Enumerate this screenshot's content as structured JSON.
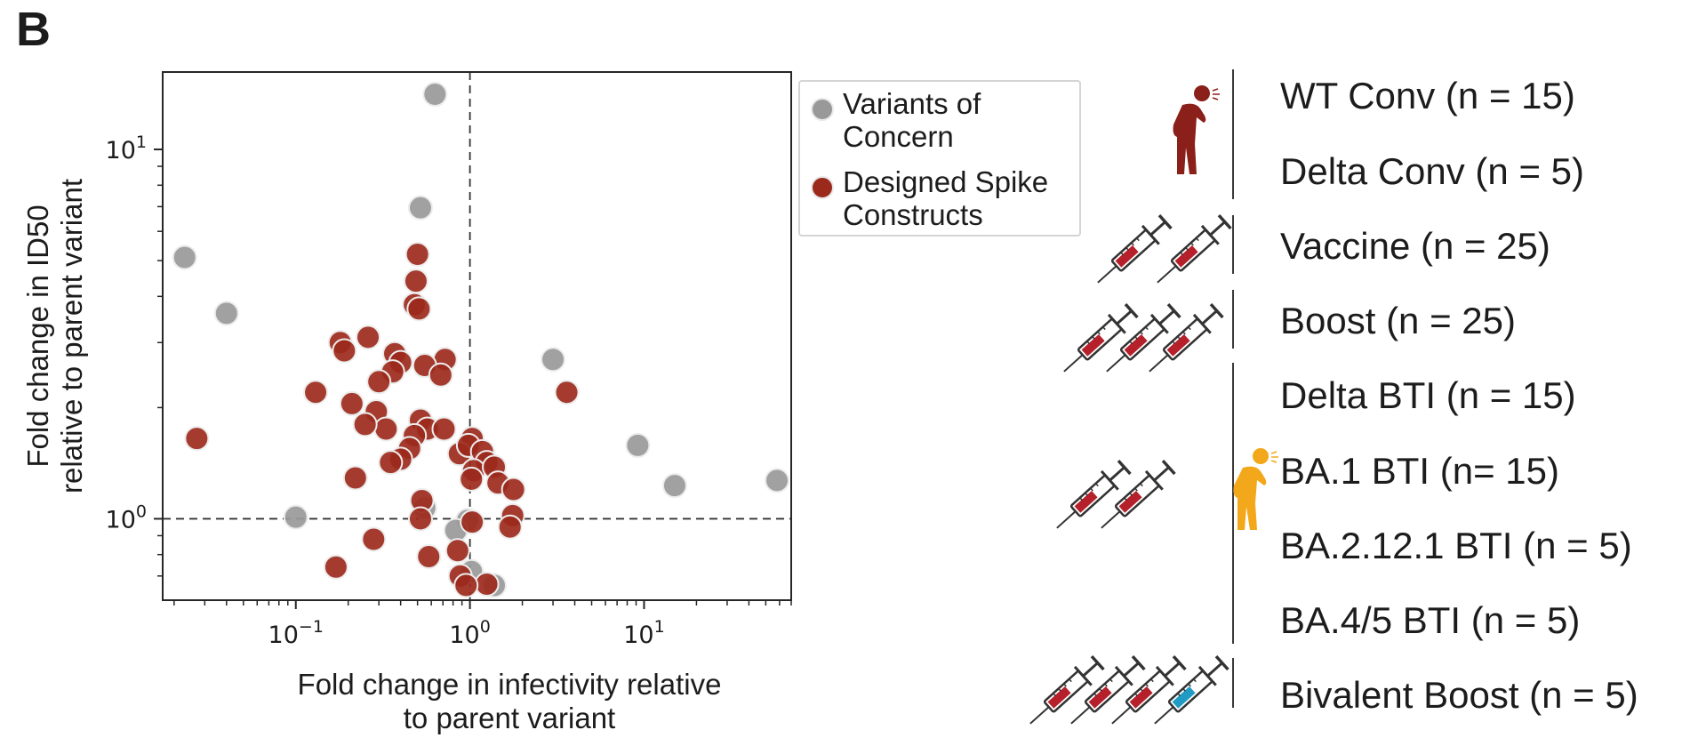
{
  "panel_label": "B",
  "colors": {
    "voc": "#999999",
    "designed": "#9c2a1c",
    "person_wt": "#8b1f1a",
    "person_bti": "#f2a81a",
    "syringe_fill_red": "#b5202a",
    "syringe_fill_blue": "#1f9bc4"
  },
  "chart_data": {
    "type": "scatter",
    "xscale": "log",
    "yscale": "log",
    "xlabel": "Fold change in infectivity relative to parent variant",
    "xlabel_lines": [
      "Fold change in infectivity relative",
      "to parent variant"
    ],
    "ylabel": "Fold change in ID50 relative to parent variant",
    "ylabel_lines": [
      "Fold change in ID50",
      "relative to parent variant"
    ],
    "xlim": [
      0.0172,
      70
    ],
    "ylim": [
      0.602,
      16.2
    ],
    "x_ticks": [
      {
        "value": 0.1,
        "base": "10",
        "exp": "−1"
      },
      {
        "value": 1,
        "base": "10",
        "exp": "0"
      },
      {
        "value": 10,
        "base": "10",
        "exp": "1"
      }
    ],
    "y_ticks": [
      {
        "value": 1,
        "base": "10",
        "exp": "0"
      },
      {
        "value": 10,
        "base": "10",
        "exp": "1"
      }
    ],
    "reference_lines": {
      "x": 1,
      "y": 1
    },
    "legend": [
      {
        "series": "voc",
        "label_lines": [
          "Variants of",
          "Concern"
        ]
      },
      {
        "series": "designed",
        "label_lines": [
          "Designed Spike",
          "Constructs"
        ]
      }
    ],
    "series": [
      {
        "name": "Variants of Concern",
        "key": "voc",
        "points": [
          [
            0.63,
            14.1
          ],
          [
            0.52,
            6.95
          ],
          [
            0.023,
            5.1
          ],
          [
            0.04,
            3.6
          ],
          [
            3.0,
            2.7
          ],
          [
            9.2,
            1.58
          ],
          [
            15.0,
            1.23
          ],
          [
            58,
            1.27
          ],
          [
            0.1,
            1.01
          ],
          [
            0.55,
            1.07
          ],
          [
            0.97,
            0.99
          ],
          [
            0.83,
            0.93
          ],
          [
            1.02,
            0.72
          ],
          [
            1.38,
            0.66
          ]
        ]
      },
      {
        "name": "Designed Spike Constructs",
        "key": "designed",
        "points": [
          [
            0.5,
            5.2
          ],
          [
            0.49,
            4.4
          ],
          [
            0.48,
            3.8
          ],
          [
            0.51,
            3.7
          ],
          [
            0.18,
            3.0
          ],
          [
            0.26,
            3.1
          ],
          [
            0.19,
            2.85
          ],
          [
            0.37,
            2.8
          ],
          [
            0.4,
            2.65
          ],
          [
            0.72,
            2.7
          ],
          [
            0.36,
            2.5
          ],
          [
            0.55,
            2.6
          ],
          [
            0.68,
            2.45
          ],
          [
            0.3,
            2.35
          ],
          [
            0.13,
            2.2
          ],
          [
            3.6,
            2.2
          ],
          [
            0.21,
            2.05
          ],
          [
            0.29,
            1.95
          ],
          [
            0.33,
            1.75
          ],
          [
            0.25,
            1.8
          ],
          [
            0.52,
            1.85
          ],
          [
            0.57,
            1.75
          ],
          [
            0.71,
            1.75
          ],
          [
            0.48,
            1.68
          ],
          [
            0.45,
            1.55
          ],
          [
            0.4,
            1.45
          ],
          [
            0.35,
            1.42
          ],
          [
            0.027,
            1.65
          ],
          [
            1.03,
            1.65
          ],
          [
            0.87,
            1.5
          ],
          [
            0.98,
            1.58
          ],
          [
            1.18,
            1.52
          ],
          [
            1.25,
            1.42
          ],
          [
            1.05,
            1.35
          ],
          [
            1.38,
            1.38
          ],
          [
            1.02,
            1.28
          ],
          [
            1.45,
            1.25
          ],
          [
            0.22,
            1.29
          ],
          [
            1.78,
            1.2
          ],
          [
            0.53,
            1.12
          ],
          [
            1.76,
            1.02
          ],
          [
            0.52,
            1.0
          ],
          [
            1.03,
            0.98
          ],
          [
            1.7,
            0.95
          ],
          [
            0.28,
            0.88
          ],
          [
            0.85,
            0.82
          ],
          [
            0.58,
            0.79
          ],
          [
            0.17,
            0.74
          ],
          [
            0.88,
            0.7
          ],
          [
            1.25,
            0.665
          ],
          [
            0.95,
            0.66
          ]
        ]
      }
    ]
  },
  "cohorts": [
    {
      "label": "WT Conv (n = 15)"
    },
    {
      "label": "Delta Conv (n = 5)"
    },
    {
      "label": "Vaccine (n = 25)"
    },
    {
      "label": "Boost (n = 25)"
    },
    {
      "label": "Delta BTI (n = 15)"
    },
    {
      "label": "BA.1 BTI (n= 15)"
    },
    {
      "label": "BA.2.12.1 BTI (n = 5)"
    },
    {
      "label": "BA.4/5 BTI (n = 5)"
    },
    {
      "label": "Bivalent Boost (n = 5)"
    }
  ],
  "groups": [
    {
      "name": "Convalescent",
      "icons": "person-coughing (red)"
    },
    {
      "name": "Vaccine",
      "icons": "2 syringes"
    },
    {
      "name": "Boost",
      "icons": "3 syringes"
    },
    {
      "name": "Breakthrough infection",
      "icons": "2 syringes + person-coughing (yellow)"
    },
    {
      "name": "Bivalent boost",
      "icons": "3 red syringes + 1 blue syringe"
    }
  ]
}
